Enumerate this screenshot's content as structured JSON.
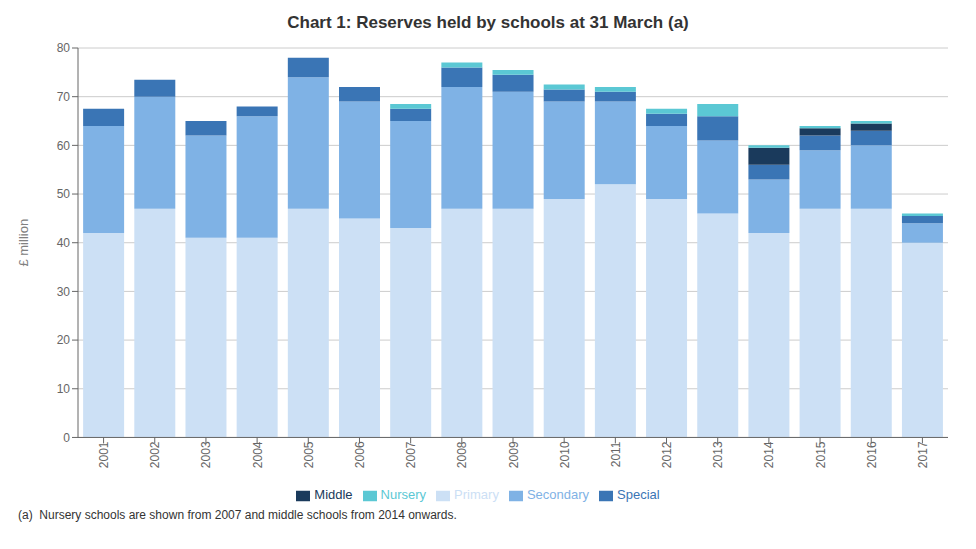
{
  "chart_data": {
    "type": "bar",
    "stacked": true,
    "title": "Chart 1: Reserves held by schools at 31 March (a)",
    "ylabel": "£ million",
    "categories": [
      "2001",
      "2002",
      "2003",
      "2004",
      "2005",
      "2006",
      "2007",
      "2008",
      "2009",
      "2010",
      "2011",
      "2012",
      "2013",
      "2014",
      "2015",
      "2016",
      "2017"
    ],
    "series": [
      {
        "name": "Primary",
        "color": "#cce0f5",
        "values": [
          42,
          47,
          41,
          41,
          47,
          45,
          43,
          47,
          47,
          49,
          52,
          49,
          46,
          42,
          47,
          47,
          40
        ]
      },
      {
        "name": "Secondary",
        "color": "#7fb2e5",
        "values": [
          22,
          23,
          21,
          25,
          27,
          24,
          22,
          25,
          24,
          20,
          17,
          15,
          15,
          11,
          12,
          13,
          4
        ]
      },
      {
        "name": "Special",
        "color": "#3a75b5",
        "values": [
          3.5,
          3.5,
          3,
          2,
          4,
          3,
          2.5,
          4,
          3.5,
          2.5,
          2,
          2.5,
          5,
          3,
          3,
          3,
          1.5
        ]
      },
      {
        "name": "Middle",
        "color": "#1a3a5c",
        "values": [
          0,
          0,
          0,
          0,
          0,
          0,
          0,
          0,
          0,
          0,
          0,
          0,
          0,
          3.5,
          1.5,
          1.5,
          0
        ]
      },
      {
        "name": "Nursery",
        "color": "#5bc8d4",
        "values": [
          0,
          0,
          0,
          0,
          0,
          0,
          1,
          1,
          1,
          1,
          1,
          1,
          2.5,
          0.5,
          0.5,
          0.5,
          0.5
        ]
      }
    ],
    "ylim": [
      0,
      80
    ],
    "yticks": [
      0,
      10,
      20,
      30,
      40,
      50,
      60,
      70,
      80
    ],
    "grid": true,
    "legend": "bottom",
    "annotations": [
      "(a)  Nursery schools are shown from 2007 and middle schools from 2014 onwards."
    ]
  }
}
